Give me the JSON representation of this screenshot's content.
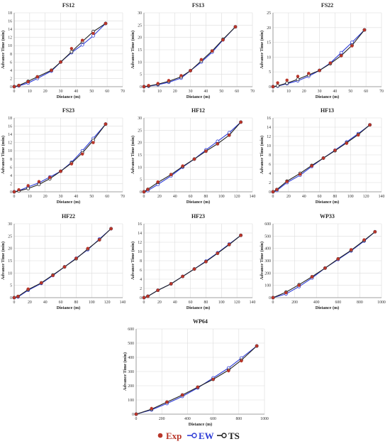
{
  "colors": {
    "exp": "#b9362a",
    "ew": "#2d3bd6",
    "ts": "#202020",
    "grid": "#dcdcdc",
    "axis": "#888888"
  },
  "legend": {
    "exp_label": "Exp",
    "ew_label": "EW",
    "ts_label": "TS"
  },
  "chart_data": [
    {
      "type": "line",
      "title": "FS12",
      "xlabel": "Distance (m)",
      "ylabel": "Advance Time (min)",
      "xlim": [
        0,
        70
      ],
      "ylim": [
        0,
        18
      ],
      "xticks": [
        0,
        10,
        20,
        30,
        40,
        50,
        60,
        70
      ],
      "yticks": [
        0,
        2,
        4,
        6,
        8,
        10,
        12,
        14,
        16,
        18
      ],
      "grid": true,
      "series": [
        {
          "name": "Exp",
          "x": [
            0,
            3,
            9,
            15,
            24,
            30,
            37,
            44,
            51,
            59
          ],
          "y": [
            0,
            0.3,
            1.2,
            2.4,
            4.0,
            6.0,
            9.3,
            11.3,
            13.0,
            15.4
          ]
        },
        {
          "name": "EW",
          "x": [
            0,
            3,
            9,
            15,
            24,
            30,
            37,
            44,
            51,
            59
          ],
          "y": [
            0,
            0.2,
            0.9,
            2.0,
            3.8,
            6.0,
            8.3,
            10.2,
            12.4,
            15.4
          ]
        },
        {
          "name": "TS",
          "x": [
            0,
            3,
            9,
            15,
            24,
            30,
            37,
            44,
            51,
            59
          ],
          "y": [
            0,
            0.3,
            1.3,
            2.4,
            4.0,
            6.0,
            8.5,
            11.0,
            13.4,
            15.4
          ]
        }
      ]
    },
    {
      "type": "line",
      "title": "FS13",
      "xlabel": "Distance (m)",
      "ylabel": "Advance Time (min)",
      "xlim": [
        0,
        70
      ],
      "ylim": [
        0,
        30
      ],
      "xticks": [
        0,
        10,
        20,
        30,
        40,
        50,
        60,
        70
      ],
      "yticks": [
        0,
        5,
        10,
        15,
        20,
        25,
        30
      ],
      "grid": true,
      "series": [
        {
          "name": "Exp",
          "x": [
            0,
            3,
            9,
            16,
            24,
            30,
            37,
            44,
            51,
            59
          ],
          "y": [
            0,
            0.5,
            1.3,
            2.5,
            4.5,
            6.5,
            11.0,
            14.5,
            19.0,
            24.3
          ]
        },
        {
          "name": "EW",
          "x": [
            0,
            3,
            9,
            16,
            24,
            30,
            37,
            44,
            51,
            59
          ],
          "y": [
            0,
            0.2,
            0.8,
            1.8,
            3.5,
            6.5,
            10.0,
            14.0,
            19.0,
            24.3
          ]
        },
        {
          "name": "TS",
          "x": [
            0,
            3,
            9,
            16,
            24,
            30,
            37,
            44,
            51,
            59
          ],
          "y": [
            0,
            0.3,
            1.0,
            2.2,
            4.0,
            6.5,
            10.5,
            14.5,
            19.2,
            24.3
          ]
        }
      ]
    },
    {
      "type": "line",
      "title": "FS22",
      "xlabel": "Distance (m)",
      "ylabel": "Advance Time (min)",
      "xlim": [
        0,
        70
      ],
      "ylim": [
        0,
        25
      ],
      "xticks": [
        0,
        10,
        20,
        30,
        40,
        50,
        60,
        70
      ],
      "yticks": [
        0,
        5,
        10,
        15,
        20,
        25
      ],
      "grid": true,
      "series": [
        {
          "name": "Exp",
          "x": [
            0,
            3,
            9,
            16,
            23,
            30,
            37,
            44,
            51,
            59
          ],
          "y": [
            0,
            1.3,
            2.2,
            3.5,
            4.5,
            5.5,
            8.0,
            10.5,
            13.8,
            19.2
          ]
        },
        {
          "name": "EW",
          "x": [
            0,
            3,
            9,
            16,
            23,
            30,
            37,
            44,
            51,
            59
          ],
          "y": [
            0,
            0.2,
            1.0,
            2.0,
            3.5,
            5.5,
            8.0,
            11.5,
            15.0,
            19.2
          ]
        },
        {
          "name": "TS",
          "x": [
            0,
            3,
            9,
            16,
            23,
            30,
            37,
            44,
            51,
            59
          ],
          "y": [
            0,
            0.3,
            1.2,
            2.5,
            4.0,
            5.5,
            7.8,
            10.5,
            14.0,
            19.2
          ]
        }
      ]
    },
    {
      "type": "line",
      "title": "FS23",
      "xlabel": "Distance (m)",
      "ylabel": "Advance Time (min)",
      "xlim": [
        0,
        70
      ],
      "ylim": [
        0,
        18
      ],
      "xticks": [
        0,
        10,
        20,
        30,
        40,
        50,
        60,
        70
      ],
      "yticks": [
        0,
        2,
        4,
        6,
        8,
        10,
        12,
        14,
        16,
        18
      ],
      "grid": true,
      "series": [
        {
          "name": "Exp",
          "x": [
            0,
            3,
            9,
            16,
            23,
            30,
            37,
            44,
            51,
            59
          ],
          "y": [
            0,
            0.5,
            1.5,
            2.5,
            3.5,
            5.0,
            6.8,
            9.2,
            12.0,
            16.5
          ]
        },
        {
          "name": "EW",
          "x": [
            0,
            3,
            9,
            16,
            23,
            30,
            37,
            44,
            51,
            59
          ],
          "y": [
            0,
            0.3,
            1.2,
            2.2,
            3.6,
            5.0,
            7.2,
            10.0,
            13.0,
            16.5
          ]
        },
        {
          "name": "TS",
          "x": [
            0,
            3,
            9,
            16,
            23,
            30,
            37,
            44,
            51,
            59
          ],
          "y": [
            0,
            0.2,
            0.8,
            1.8,
            3.2,
            5.0,
            7.0,
            9.5,
            12.5,
            16.5
          ]
        }
      ]
    },
    {
      "type": "line",
      "title": "HF12",
      "xlabel": "Distance (m)",
      "ylabel": "Advance Time (min)",
      "xlim": [
        0,
        140
      ],
      "ylim": [
        0,
        30
      ],
      "xticks": [
        0,
        20,
        40,
        60,
        80,
        100,
        120,
        140
      ],
      "yticks": [
        0,
        5,
        10,
        15,
        20,
        25,
        30
      ],
      "grid": true,
      "series": [
        {
          "name": "Exp",
          "x": [
            0,
            5,
            18,
            35,
            50,
            65,
            80,
            95,
            110,
            125
          ],
          "y": [
            0,
            1.0,
            4.0,
            7.0,
            10.5,
            13.3,
            16.5,
            19.5,
            23.0,
            28.3
          ]
        },
        {
          "name": "EW",
          "x": [
            0,
            5,
            18,
            35,
            50,
            65,
            80,
            95,
            110,
            125
          ],
          "y": [
            0,
            0.5,
            3.0,
            6.5,
            10.0,
            13.3,
            17.0,
            20.5,
            24.0,
            28.3
          ]
        },
        {
          "name": "TS",
          "x": [
            0,
            5,
            18,
            35,
            50,
            65,
            80,
            95,
            110,
            125
          ],
          "y": [
            0,
            1.0,
            3.8,
            7.0,
            10.3,
            13.3,
            16.5,
            19.5,
            23.0,
            28.3
          ]
        }
      ]
    },
    {
      "type": "line",
      "title": "HF13",
      "xlabel": "Distance (m)",
      "ylabel": "Advance Time (min)",
      "xlim": [
        0,
        140
      ],
      "ylim": [
        0,
        16
      ],
      "xticks": [
        0,
        20,
        40,
        60,
        80,
        100,
        120,
        140
      ],
      "yticks": [
        0,
        2,
        4,
        6,
        8,
        10,
        12,
        14,
        16
      ],
      "grid": true,
      "series": [
        {
          "name": "Exp",
          "x": [
            0,
            5,
            18,
            35,
            50,
            65,
            80,
            95,
            110,
            125
          ],
          "y": [
            0,
            0.5,
            2.2,
            3.8,
            5.6,
            7.3,
            9.0,
            10.5,
            12.3,
            14.5
          ]
        },
        {
          "name": "EW",
          "x": [
            0,
            5,
            18,
            35,
            50,
            65,
            80,
            95,
            110,
            125
          ],
          "y": [
            0,
            0.3,
            2.0,
            3.6,
            5.5,
            7.3,
            9.0,
            10.8,
            12.6,
            14.5
          ]
        },
        {
          "name": "TS",
          "x": [
            0,
            5,
            18,
            35,
            50,
            65,
            80,
            95,
            110,
            125
          ],
          "y": [
            0,
            0.5,
            2.3,
            4.0,
            5.7,
            7.3,
            8.9,
            10.6,
            12.4,
            14.5
          ]
        }
      ]
    },
    {
      "type": "line",
      "title": "HF22",
      "xlabel": "Distance (m)",
      "ylabel": "Advance Time (min)",
      "xlim": [
        0,
        140
      ],
      "ylim": [
        0,
        30
      ],
      "xticks": [
        0,
        20,
        40,
        60,
        80,
        100,
        120,
        140
      ],
      "yticks": [
        0,
        5,
        10,
        15,
        20,
        25,
        30
      ],
      "grid": true,
      "series": [
        {
          "name": "Exp",
          "x": [
            0,
            5,
            18,
            35,
            50,
            65,
            80,
            95,
            110,
            125
          ],
          "y": [
            0,
            0.5,
            3.5,
            6.0,
            9.0,
            12.5,
            16.0,
            20.0,
            23.5,
            28.0
          ]
        },
        {
          "name": "EW",
          "x": [
            0,
            5,
            18,
            35,
            50,
            65,
            80,
            95,
            110,
            125
          ],
          "y": [
            0,
            0.3,
            3.0,
            5.8,
            9.0,
            12.5,
            16.0,
            19.5,
            23.8,
            28.0
          ]
        },
        {
          "name": "TS",
          "x": [
            0,
            5,
            18,
            35,
            50,
            65,
            80,
            95,
            110,
            125
          ],
          "y": [
            0,
            0.5,
            3.3,
            6.0,
            9.2,
            12.5,
            15.8,
            19.8,
            23.5,
            28.0
          ]
        }
      ]
    },
    {
      "type": "line",
      "title": "HF23",
      "xlabel": "Distance (m)",
      "ylabel": "Advance Time (min)",
      "xlim": [
        0,
        140
      ],
      "ylim": [
        0,
        16
      ],
      "xticks": [
        0,
        20,
        40,
        60,
        80,
        100,
        120,
        140
      ],
      "yticks": [
        0,
        2,
        4,
        6,
        8,
        10,
        12,
        14,
        16
      ],
      "grid": true,
      "series": [
        {
          "name": "Exp",
          "x": [
            0,
            5,
            18,
            35,
            50,
            65,
            80,
            95,
            110,
            125
          ],
          "y": [
            0,
            0.3,
            1.6,
            3.0,
            4.6,
            6.2,
            7.8,
            9.6,
            11.5,
            13.5
          ]
        },
        {
          "name": "EW",
          "x": [
            0,
            5,
            18,
            35,
            50,
            65,
            80,
            95,
            110,
            125
          ],
          "y": [
            0,
            0.3,
            1.6,
            3.0,
            4.6,
            6.2,
            7.9,
            9.7,
            11.6,
            13.5
          ]
        },
        {
          "name": "TS",
          "x": [
            0,
            5,
            18,
            35,
            50,
            65,
            80,
            95,
            110,
            125
          ],
          "y": [
            0,
            0.3,
            1.6,
            3.0,
            4.6,
            6.2,
            7.8,
            9.6,
            11.5,
            13.5
          ]
        }
      ]
    },
    {
      "type": "line",
      "title": "WP33",
      "xlabel": "Distance (m)",
      "ylabel": "Advance Time (min)",
      "xlim": [
        0,
        1000
      ],
      "ylim": [
        0,
        600
      ],
      "xticks": [
        0,
        200,
        400,
        600,
        800,
        1000
      ],
      "yticks": [
        0,
        100,
        200,
        300,
        400,
        500,
        600
      ],
      "grid": true,
      "series": [
        {
          "name": "Exp",
          "x": [
            0,
            120,
            240,
            360,
            480,
            600,
            720,
            840,
            940
          ],
          "y": [
            0,
            40,
            100,
            170,
            240,
            315,
            390,
            470,
            535
          ]
        },
        {
          "name": "EW",
          "x": [
            0,
            120,
            240,
            360,
            480,
            600,
            720,
            840,
            940
          ],
          "y": [
            0,
            30,
            90,
            160,
            240,
            310,
            380,
            460,
            535
          ]
        },
        {
          "name": "TS",
          "x": [
            0,
            120,
            240,
            360,
            480,
            600,
            720,
            840,
            940
          ],
          "y": [
            0,
            45,
            105,
            170,
            240,
            315,
            385,
            465,
            535
          ]
        }
      ]
    },
    {
      "type": "line",
      "title": "WP64",
      "xlabel": "Distance (m)",
      "ylabel": "Advance Time (min)",
      "xlim": [
        0,
        1000
      ],
      "ylim": [
        0,
        600
      ],
      "xticks": [
        0,
        200,
        400,
        600,
        800,
        1000
      ],
      "yticks": [
        0,
        100,
        200,
        300,
        400,
        500,
        600
      ],
      "grid": true,
      "series": [
        {
          "name": "Exp",
          "x": [
            0,
            120,
            240,
            360,
            480,
            600,
            720,
            820,
            940
          ],
          "y": [
            0,
            40,
            85,
            135,
            190,
            245,
            305,
            375,
            480
          ]
        },
        {
          "name": "EW",
          "x": [
            0,
            120,
            240,
            360,
            480,
            600,
            720,
            820,
            940
          ],
          "y": [
            0,
            30,
            75,
            125,
            185,
            255,
            325,
            395,
            480
          ]
        },
        {
          "name": "TS",
          "x": [
            0,
            120,
            240,
            360,
            480,
            600,
            720,
            820,
            940
          ],
          "y": [
            0,
            35,
            85,
            135,
            190,
            245,
            310,
            380,
            480
          ]
        }
      ]
    }
  ]
}
